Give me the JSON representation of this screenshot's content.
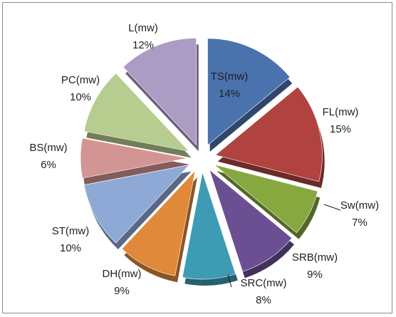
{
  "chart_data": {
    "type": "pie",
    "exploded": true,
    "three_d": true,
    "start_angle_deg": 0,
    "slices": [
      {
        "name": "TS(mw)",
        "value": 14,
        "label": "14%",
        "color": "#4a72ad"
      },
      {
        "name": "FL(mw)",
        "value": 15,
        "label": "15%",
        "color": "#b04340"
      },
      {
        "name": "Sw(mw)",
        "value": 7,
        "label": "7%",
        "color": "#86a83e"
      },
      {
        "name": "SRB(mw)",
        "value": 9,
        "label": "9%",
        "color": "#6b4f93"
      },
      {
        "name": "SRC(mw)",
        "value": 8,
        "label": "8%",
        "color": "#3d9cb4"
      },
      {
        "name": "DH(mw)",
        "value": 9,
        "label": "9%",
        "color": "#e0893a"
      },
      {
        "name": "ST(mw)",
        "value": 10,
        "label": "10%",
        "color": "#8fa9d7"
      },
      {
        "name": "BS(mw)",
        "value": 6,
        "label": "6%",
        "color": "#d39593"
      },
      {
        "name": "PC(mw)",
        "value": 10,
        "label": "10%",
        "color": "#b7cc8f"
      },
      {
        "name": "L(mw)",
        "value": 12,
        "label": "12%",
        "color": "#ab9cc4"
      }
    ]
  }
}
